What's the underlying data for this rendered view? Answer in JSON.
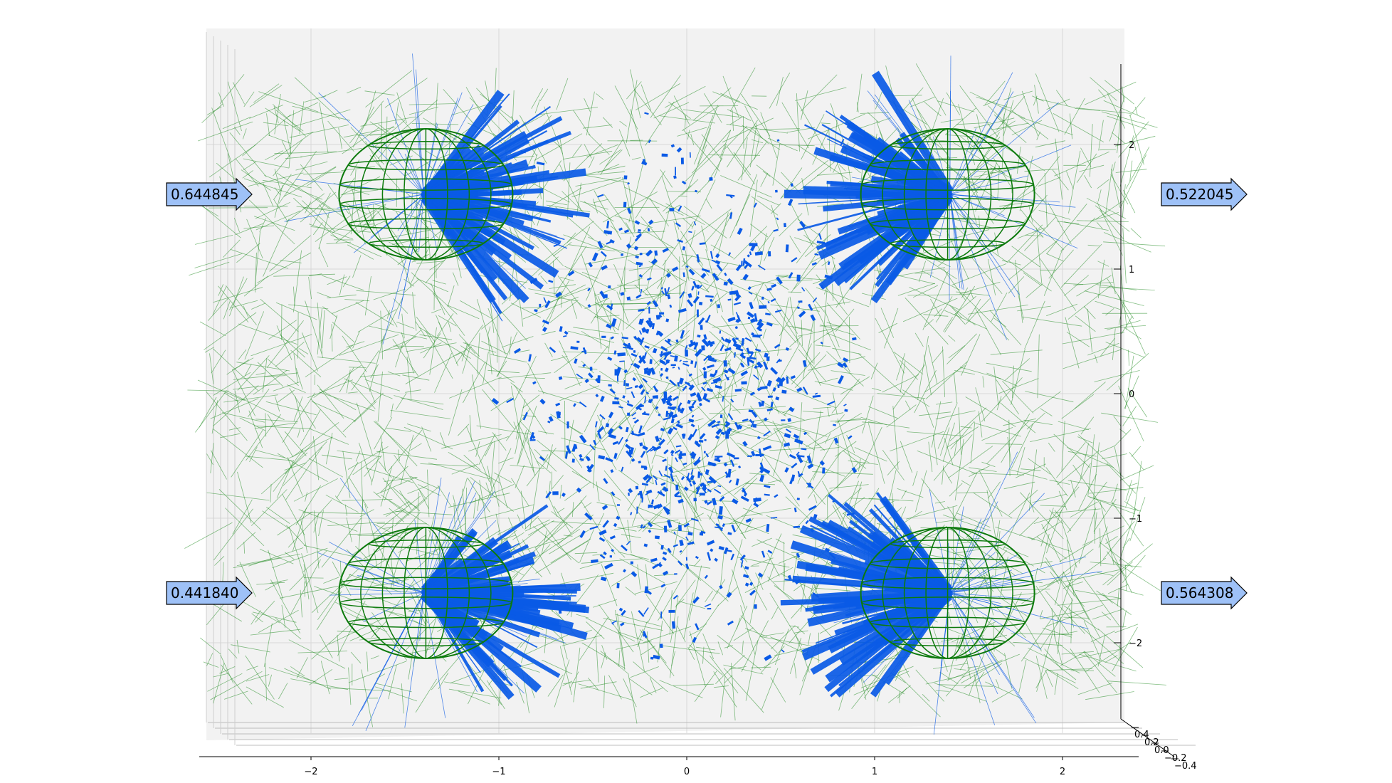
{
  "chart_data": {
    "type": "scatter",
    "title": "",
    "xlabel": "",
    "ylabel": "",
    "zlabel": "",
    "xlim": [
      -2.6,
      2.4
    ],
    "ylim": [
      -2.6,
      2.6
    ],
    "x_ticks": [
      "−2",
      "−1",
      "0",
      "1",
      "2"
    ],
    "y_ticks": [
      "2",
      "1",
      "0",
      "−1",
      "−2"
    ],
    "z_ticks": [
      "0.4",
      "0.2",
      "0.0",
      "−0.2",
      "−0.4"
    ],
    "grid": true,
    "legend": "none",
    "colors": {
      "network_lines": "#1f8a1f",
      "spike_lines": "#0a5ae6",
      "sphere_wireframe": "#0c7a0c",
      "arrow_fill": "#9ec1f7",
      "arrow_stroke": "#000000",
      "pane": "#f2f2f2"
    },
    "nodes": [
      {
        "name": "top-left",
        "x": -1.4,
        "y": 1.6,
        "value": "0.644845",
        "arrow": "left"
      },
      {
        "name": "top-right",
        "x": 1.4,
        "y": 1.6,
        "value": "0.522045",
        "arrow": "right"
      },
      {
        "name": "bottom-left",
        "x": -1.4,
        "y": -1.6,
        "value": "0.441840",
        "arrow": "left"
      },
      {
        "name": "bottom-right",
        "x": 1.4,
        "y": -1.6,
        "value": "0.564308",
        "arrow": "right"
      }
    ]
  }
}
